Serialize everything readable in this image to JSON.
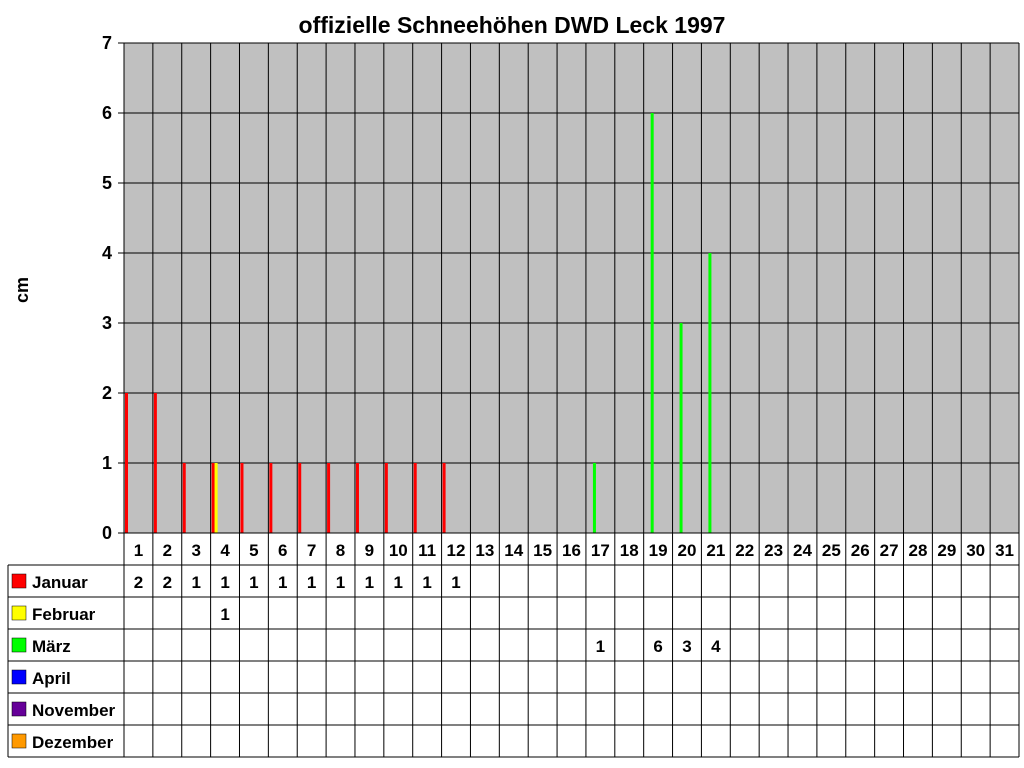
{
  "chart_data": {
    "type": "bar",
    "title": "offizielle Schneehöhen DWD Leck 1997",
    "ylabel": "cm",
    "ylim": [
      0,
      7
    ],
    "yticks": [
      0,
      1,
      2,
      3,
      4,
      5,
      6,
      7
    ],
    "categories": [
      "1",
      "2",
      "3",
      "4",
      "5",
      "6",
      "7",
      "8",
      "9",
      "10",
      "11",
      "12",
      "13",
      "14",
      "15",
      "16",
      "17",
      "18",
      "19",
      "20",
      "21",
      "22",
      "23",
      "24",
      "25",
      "26",
      "27",
      "28",
      "29",
      "30",
      "31"
    ],
    "grid": true,
    "legend": "data-table-below",
    "series": [
      {
        "name": "Januar",
        "color": "#ff0000",
        "values": [
          2,
          2,
          1,
          1,
          1,
          1,
          1,
          1,
          1,
          1,
          1,
          1,
          null,
          null,
          null,
          null,
          null,
          null,
          null,
          null,
          null,
          null,
          null,
          null,
          null,
          null,
          null,
          null,
          null,
          null,
          null
        ]
      },
      {
        "name": "Februar",
        "color": "#ffff00",
        "values": [
          null,
          null,
          null,
          1,
          null,
          null,
          null,
          null,
          null,
          null,
          null,
          null,
          null,
          null,
          null,
          null,
          null,
          null,
          null,
          null,
          null,
          null,
          null,
          null,
          null,
          null,
          null,
          null,
          null,
          null,
          null
        ]
      },
      {
        "name": "März",
        "color": "#00ff00",
        "values": [
          null,
          null,
          null,
          null,
          null,
          null,
          null,
          null,
          null,
          null,
          null,
          null,
          null,
          null,
          null,
          null,
          1,
          null,
          6,
          3,
          4,
          null,
          null,
          null,
          null,
          null,
          null,
          null,
          null,
          null,
          null
        ]
      },
      {
        "name": "April",
        "color": "#0000ff",
        "values": [
          null,
          null,
          null,
          null,
          null,
          null,
          null,
          null,
          null,
          null,
          null,
          null,
          null,
          null,
          null,
          null,
          null,
          null,
          null,
          null,
          null,
          null,
          null,
          null,
          null,
          null,
          null,
          null,
          null,
          null,
          null
        ]
      },
      {
        "name": "November",
        "color": "#660099",
        "values": [
          null,
          null,
          null,
          null,
          null,
          null,
          null,
          null,
          null,
          null,
          null,
          null,
          null,
          null,
          null,
          null,
          null,
          null,
          null,
          null,
          null,
          null,
          null,
          null,
          null,
          null,
          null,
          null,
          null,
          null,
          null
        ]
      },
      {
        "name": "Dezember",
        "color": "#ff9900",
        "values": [
          null,
          null,
          null,
          null,
          null,
          null,
          null,
          null,
          null,
          null,
          null,
          null,
          null,
          null,
          null,
          null,
          null,
          null,
          null,
          null,
          null,
          null,
          null,
          null,
          null,
          null,
          null,
          null,
          null,
          null,
          null
        ]
      }
    ],
    "colors": {
      "plot_background": "#c0c0c0",
      "grid": "#000000"
    }
  }
}
